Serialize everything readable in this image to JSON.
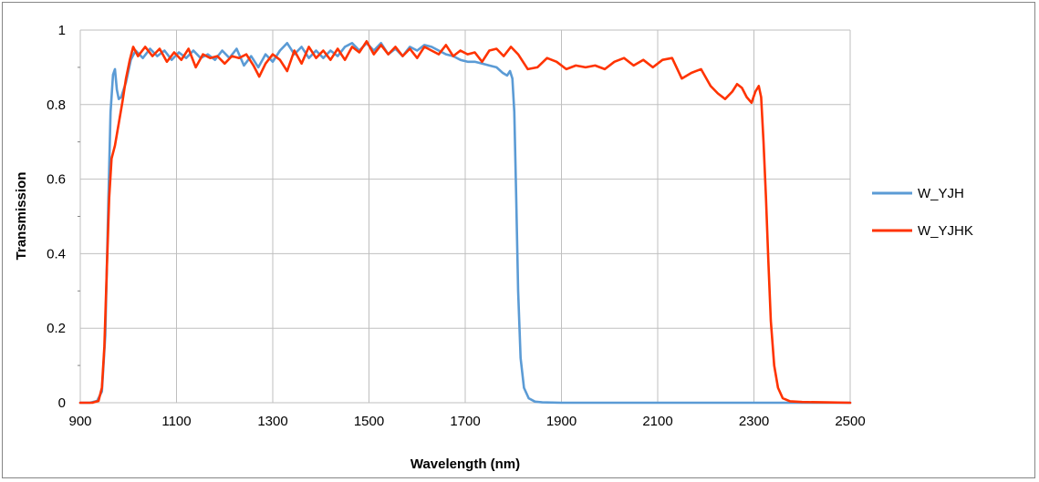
{
  "chart_data": {
    "type": "line",
    "title": "",
    "xlabel": "Wavelength (nm)",
    "ylabel": "Transmission",
    "xlim": [
      900,
      2500
    ],
    "ylim": [
      0,
      1
    ],
    "xticks": [
      "900",
      "1100",
      "1300",
      "1500",
      "1700",
      "1900",
      "2100",
      "2300",
      "2500"
    ],
    "yticks": [
      "0",
      "0.2",
      "0.4",
      "0.6",
      "0.8",
      "1"
    ],
    "grid": true,
    "legend_position": "right",
    "series": [
      {
        "name": "W_YJH",
        "color": "#5B9BD5",
        "points": [
          [
            900,
            0.0
          ],
          [
            920,
            0.0
          ],
          [
            935,
            0.005
          ],
          [
            945,
            0.03
          ],
          [
            952,
            0.18
          ],
          [
            958,
            0.52
          ],
          [
            963,
            0.78
          ],
          [
            968,
            0.88
          ],
          [
            972,
            0.895
          ],
          [
            976,
            0.84
          ],
          [
            980,
            0.815
          ],
          [
            985,
            0.82
          ],
          [
            995,
            0.86
          ],
          [
            1005,
            0.92
          ],
          [
            1015,
            0.945
          ],
          [
            1030,
            0.925
          ],
          [
            1045,
            0.95
          ],
          [
            1060,
            0.93
          ],
          [
            1075,
            0.945
          ],
          [
            1090,
            0.92
          ],
          [
            1105,
            0.94
          ],
          [
            1120,
            0.925
          ],
          [
            1135,
            0.945
          ],
          [
            1150,
            0.925
          ],
          [
            1165,
            0.935
          ],
          [
            1180,
            0.92
          ],
          [
            1195,
            0.945
          ],
          [
            1210,
            0.925
          ],
          [
            1225,
            0.95
          ],
          [
            1240,
            0.905
          ],
          [
            1255,
            0.93
          ],
          [
            1270,
            0.9
          ],
          [
            1285,
            0.935
          ],
          [
            1300,
            0.915
          ],
          [
            1315,
            0.945
          ],
          [
            1330,
            0.965
          ],
          [
            1345,
            0.935
          ],
          [
            1360,
            0.955
          ],
          [
            1375,
            0.925
          ],
          [
            1390,
            0.945
          ],
          [
            1405,
            0.925
          ],
          [
            1420,
            0.945
          ],
          [
            1435,
            0.93
          ],
          [
            1450,
            0.955
          ],
          [
            1465,
            0.965
          ],
          [
            1480,
            0.945
          ],
          [
            1495,
            0.965
          ],
          [
            1510,
            0.945
          ],
          [
            1525,
            0.965
          ],
          [
            1540,
            0.935
          ],
          [
            1555,
            0.95
          ],
          [
            1570,
            0.93
          ],
          [
            1585,
            0.955
          ],
          [
            1600,
            0.945
          ],
          [
            1615,
            0.96
          ],
          [
            1630,
            0.955
          ],
          [
            1645,
            0.945
          ],
          [
            1660,
            0.935
          ],
          [
            1675,
            0.93
          ],
          [
            1690,
            0.92
          ],
          [
            1705,
            0.915
          ],
          [
            1720,
            0.915
          ],
          [
            1735,
            0.91
          ],
          [
            1750,
            0.905
          ],
          [
            1765,
            0.9
          ],
          [
            1778,
            0.885
          ],
          [
            1787,
            0.878
          ],
          [
            1793,
            0.89
          ],
          [
            1798,
            0.87
          ],
          [
            1802,
            0.78
          ],
          [
            1806,
            0.55
          ],
          [
            1810,
            0.3
          ],
          [
            1815,
            0.12
          ],
          [
            1822,
            0.04
          ],
          [
            1832,
            0.012
          ],
          [
            1845,
            0.003
          ],
          [
            1860,
            0.001
          ],
          [
            1900,
            0.0
          ],
          [
            2500,
            0.0
          ]
        ]
      },
      {
        "name": "W_YJHK",
        "color": "#FF3300",
        "points": [
          [
            900,
            0.0
          ],
          [
            925,
            0.0
          ],
          [
            938,
            0.005
          ],
          [
            945,
            0.04
          ],
          [
            950,
            0.15
          ],
          [
            955,
            0.35
          ],
          [
            960,
            0.55
          ],
          [
            965,
            0.655
          ],
          [
            972,
            0.69
          ],
          [
            980,
            0.75
          ],
          [
            988,
            0.81
          ],
          [
            995,
            0.87
          ],
          [
            1003,
            0.92
          ],
          [
            1010,
            0.955
          ],
          [
            1020,
            0.93
          ],
          [
            1035,
            0.955
          ],
          [
            1050,
            0.93
          ],
          [
            1065,
            0.95
          ],
          [
            1080,
            0.915
          ],
          [
            1095,
            0.94
          ],
          [
            1110,
            0.92
          ],
          [
            1125,
            0.95
          ],
          [
            1140,
            0.9
          ],
          [
            1155,
            0.935
          ],
          [
            1170,
            0.925
          ],
          [
            1185,
            0.93
          ],
          [
            1200,
            0.91
          ],
          [
            1215,
            0.93
          ],
          [
            1230,
            0.925
          ],
          [
            1245,
            0.935
          ],
          [
            1260,
            0.905
          ],
          [
            1272,
            0.875
          ],
          [
            1285,
            0.91
          ],
          [
            1300,
            0.935
          ],
          [
            1315,
            0.92
          ],
          [
            1330,
            0.89
          ],
          [
            1345,
            0.945
          ],
          [
            1360,
            0.91
          ],
          [
            1375,
            0.955
          ],
          [
            1390,
            0.925
          ],
          [
            1405,
            0.945
          ],
          [
            1420,
            0.92
          ],
          [
            1435,
            0.95
          ],
          [
            1450,
            0.92
          ],
          [
            1465,
            0.955
          ],
          [
            1480,
            0.94
          ],
          [
            1495,
            0.97
          ],
          [
            1510,
            0.935
          ],
          [
            1525,
            0.96
          ],
          [
            1540,
            0.935
          ],
          [
            1555,
            0.955
          ],
          [
            1570,
            0.93
          ],
          [
            1585,
            0.95
          ],
          [
            1600,
            0.925
          ],
          [
            1615,
            0.955
          ],
          [
            1630,
            0.945
          ],
          [
            1645,
            0.935
          ],
          [
            1660,
            0.96
          ],
          [
            1675,
            0.93
          ],
          [
            1690,
            0.945
          ],
          [
            1705,
            0.935
          ],
          [
            1720,
            0.94
          ],
          [
            1735,
            0.915
          ],
          [
            1750,
            0.945
          ],
          [
            1765,
            0.95
          ],
          [
            1780,
            0.93
          ],
          [
            1795,
            0.955
          ],
          [
            1810,
            0.935
          ],
          [
            1830,
            0.895
          ],
          [
            1850,
            0.9
          ],
          [
            1870,
            0.925
          ],
          [
            1890,
            0.915
          ],
          [
            1910,
            0.895
          ],
          [
            1930,
            0.905
          ],
          [
            1950,
            0.9
          ],
          [
            1970,
            0.905
          ],
          [
            1990,
            0.895
          ],
          [
            2010,
            0.915
          ],
          [
            2030,
            0.925
          ],
          [
            2050,
            0.905
          ],
          [
            2070,
            0.92
          ],
          [
            2090,
            0.9
          ],
          [
            2110,
            0.92
          ],
          [
            2130,
            0.925
          ],
          [
            2150,
            0.87
          ],
          [
            2170,
            0.885
          ],
          [
            2190,
            0.895
          ],
          [
            2210,
            0.85
          ],
          [
            2225,
            0.83
          ],
          [
            2240,
            0.815
          ],
          [
            2255,
            0.835
          ],
          [
            2265,
            0.855
          ],
          [
            2275,
            0.845
          ],
          [
            2285,
            0.82
          ],
          [
            2295,
            0.805
          ],
          [
            2303,
            0.835
          ],
          [
            2310,
            0.85
          ],
          [
            2315,
            0.82
          ],
          [
            2320,
            0.7
          ],
          [
            2325,
            0.55
          ],
          [
            2330,
            0.38
          ],
          [
            2335,
            0.22
          ],
          [
            2342,
            0.1
          ],
          [
            2350,
            0.04
          ],
          [
            2360,
            0.012
          ],
          [
            2375,
            0.004
          ],
          [
            2400,
            0.002
          ],
          [
            2450,
            0.001
          ],
          [
            2500,
            0.0
          ]
        ]
      }
    ]
  }
}
